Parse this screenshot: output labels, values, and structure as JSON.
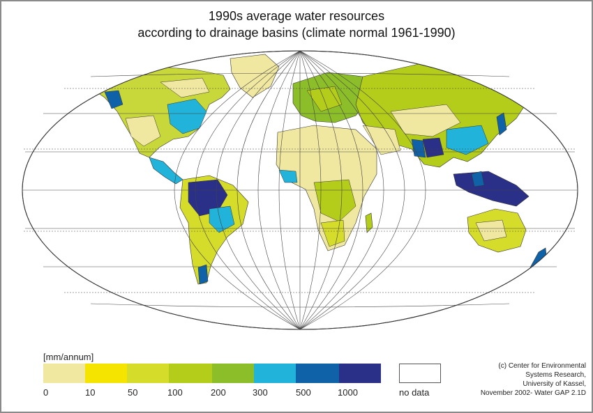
{
  "title_line1": "1990s average water resources",
  "title_line2": "according to drainage basins (climate normal 1961-1990)",
  "legend": {
    "unit": "[mm/annum]",
    "ticks": [
      "0",
      "10",
      "50",
      "100",
      "200",
      "300",
      "500",
      "1000"
    ],
    "colors": [
      "#f0e8a0",
      "#f5e400",
      "#d6dc2a",
      "#b4cc1a",
      "#8cbe2a",
      "#21b3d9",
      "#0f62a8",
      "#2a2f88"
    ],
    "no_data": "no data"
  },
  "credit": {
    "line1": "(c) Center for Environmental",
    "line2": "Systems Research,",
    "line3": "University of Kassel,",
    "line4": "November 2002- Water GAP 2.1D"
  }
}
